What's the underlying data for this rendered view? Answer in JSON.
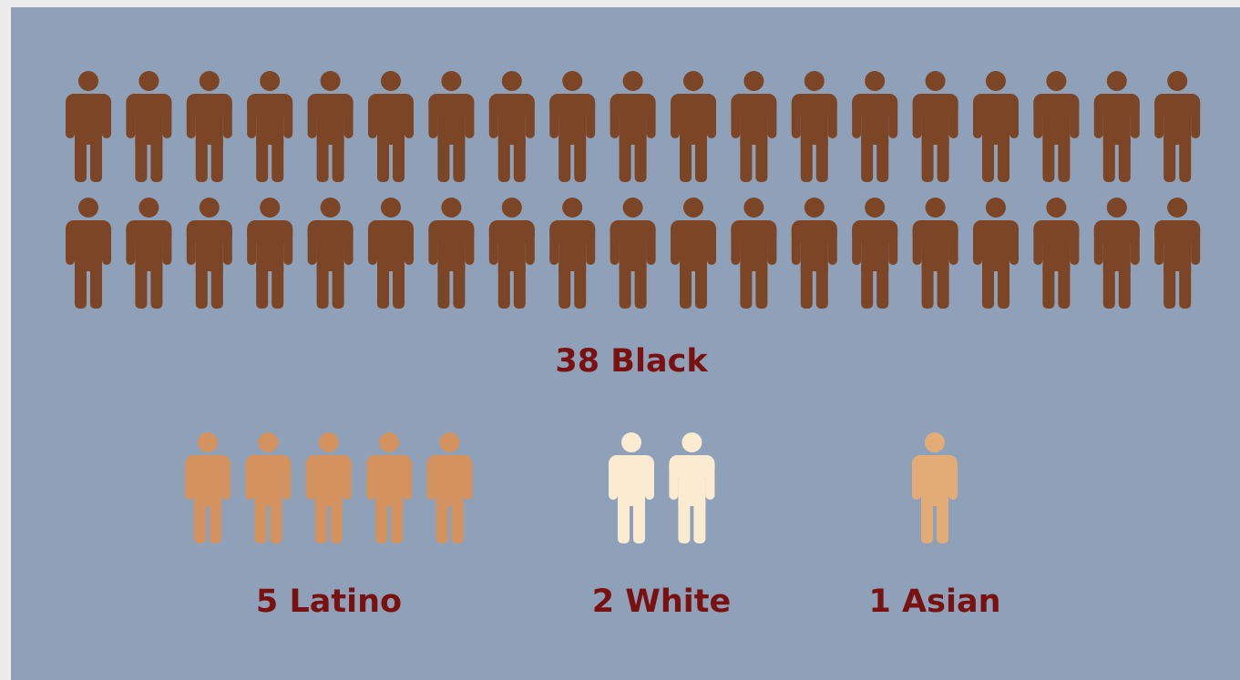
{
  "chart_data": {
    "type": "pictograph",
    "values": [
      38,
      5,
      2,
      1
    ],
    "value_labels": [
      "38 Black",
      "5 Latino",
      "2 White",
      "1 Asian"
    ],
    "colors": [
      "#7b4526",
      "#d3925e",
      "#fbebd1",
      "#e3ab75"
    ]
  }
}
